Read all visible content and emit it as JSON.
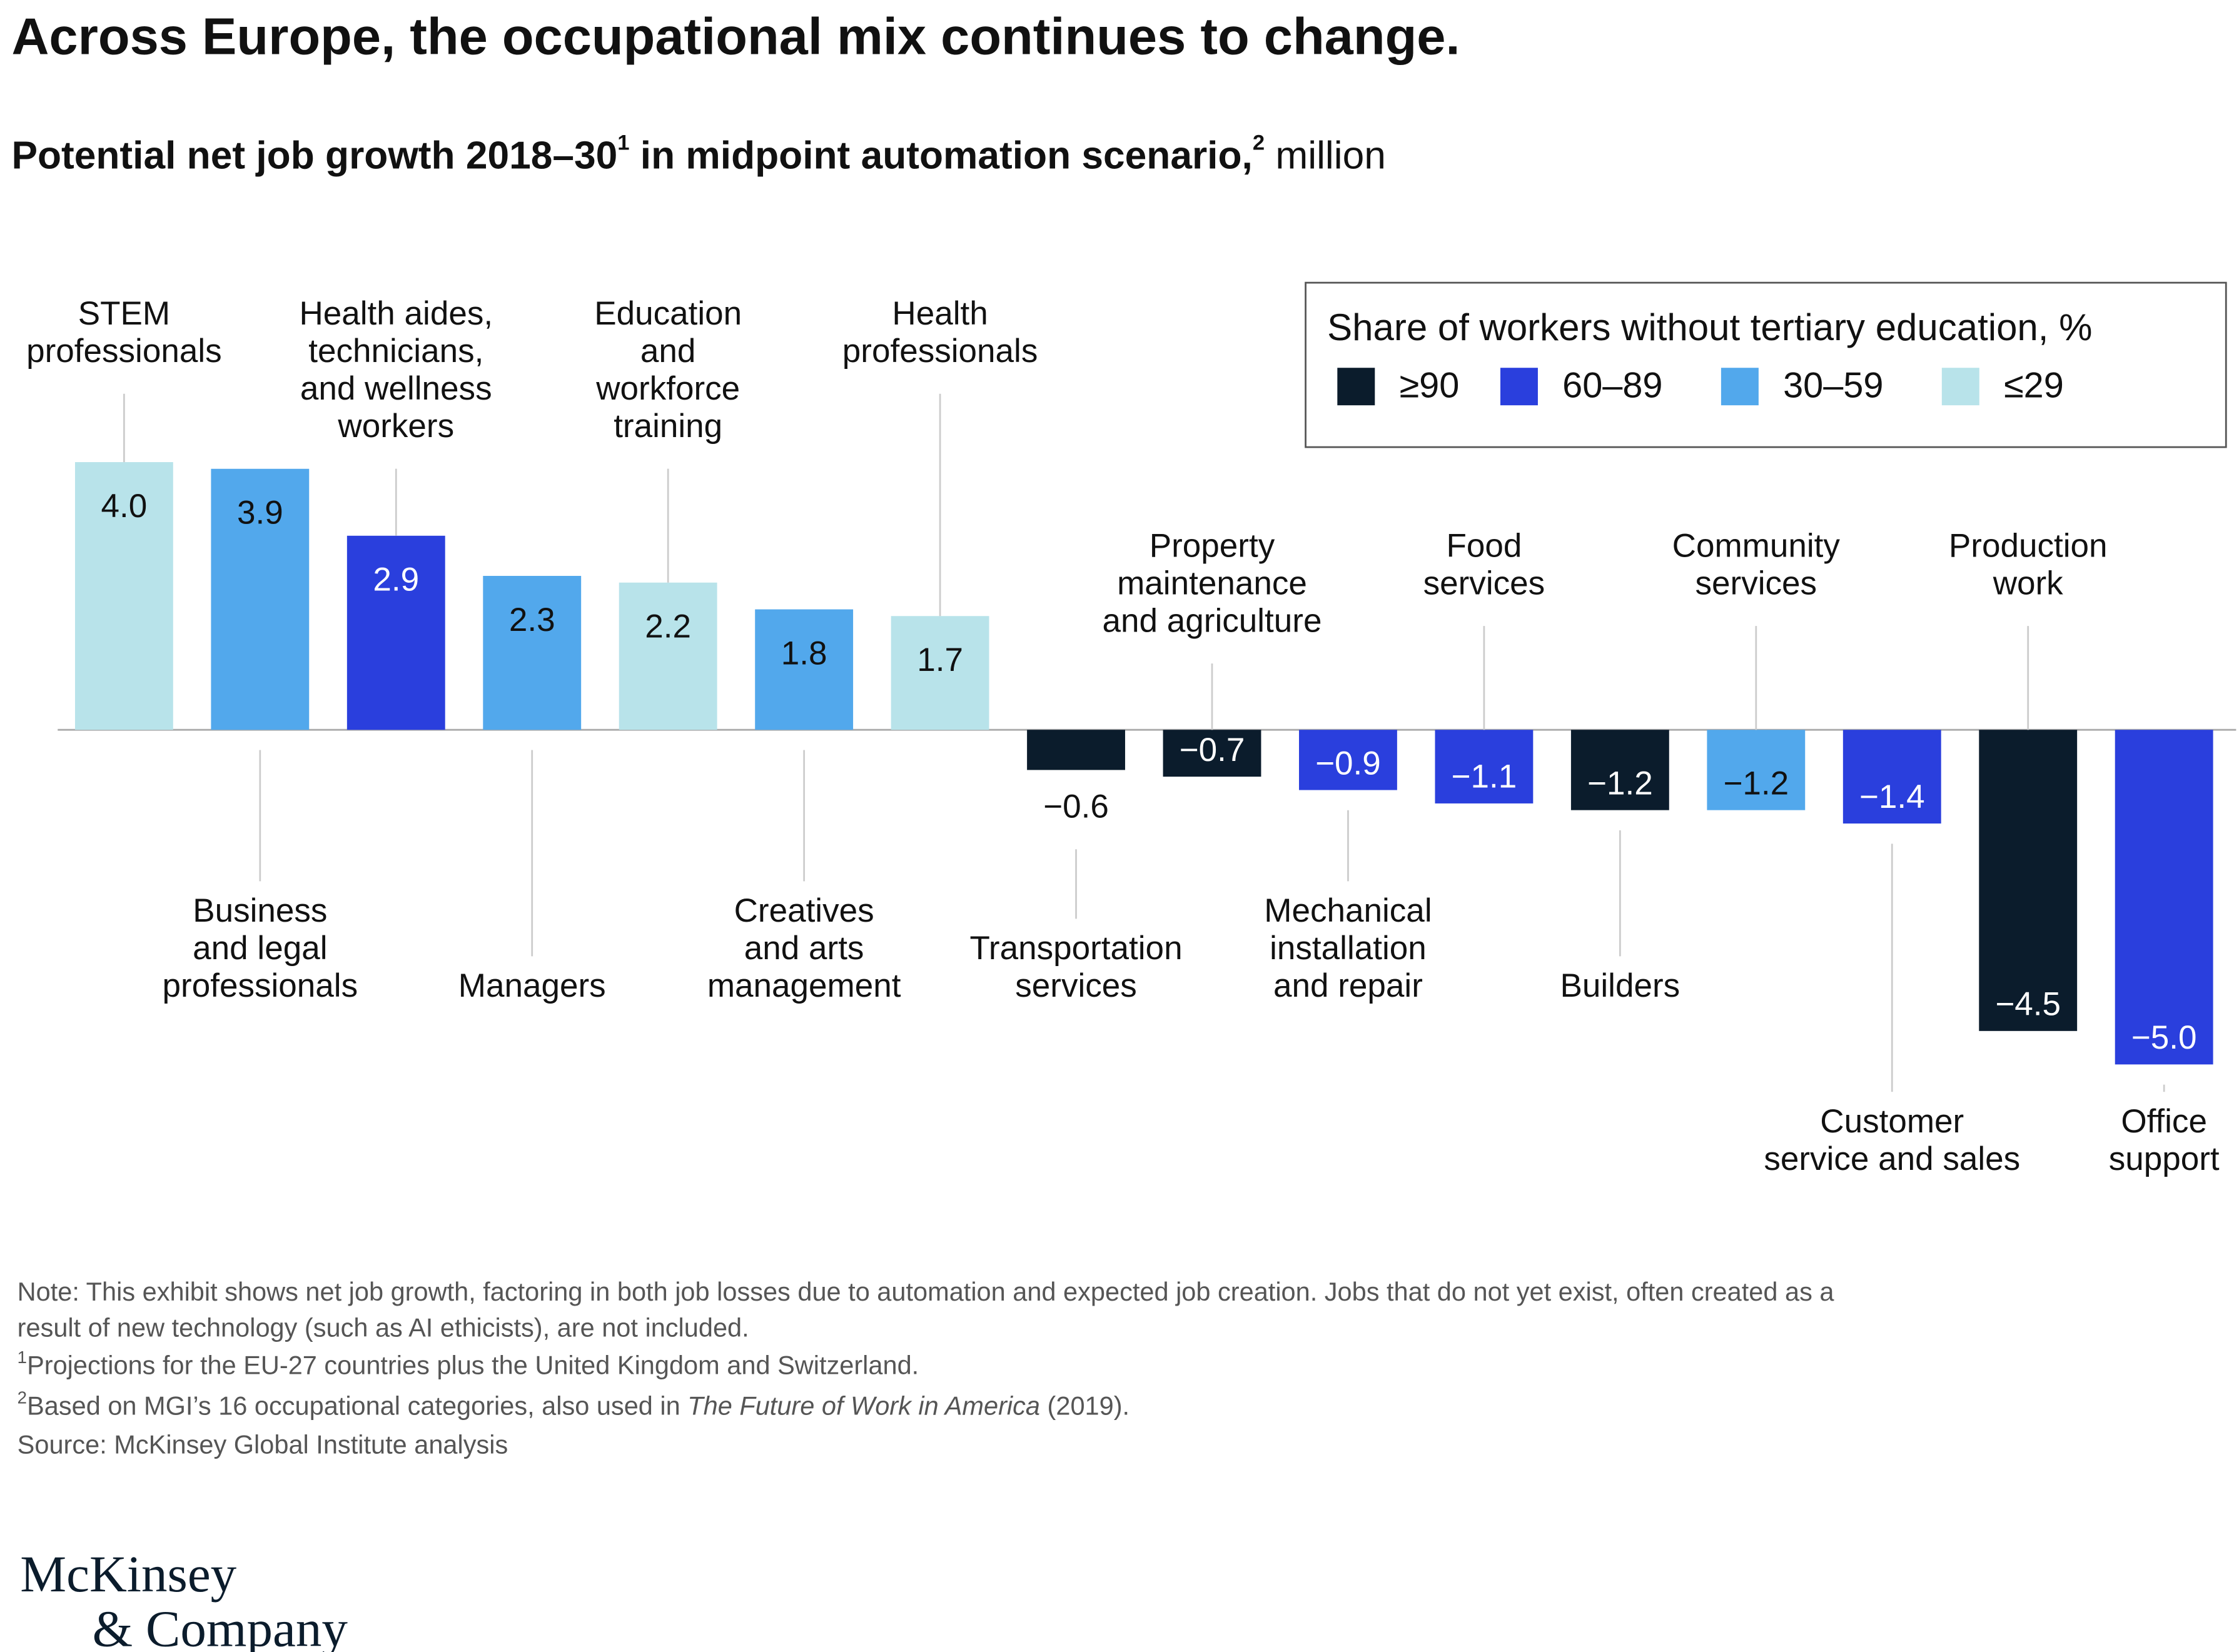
{
  "chart_data": {
    "type": "bar",
    "title": "Across Europe, the occupational mix continues to change.",
    "subtitle": {
      "text": "Potential net job growth 2018–30",
      "note1": "1",
      "text2": " in midpoint automation scenario,",
      "note2": "2",
      "unit": " million"
    },
    "categories": [
      "STEM\nprofessionals",
      "Business\nand legal\nprofessionals",
      "Health aides,\ntechnicians,\nand wellness\nworkers",
      "Managers",
      "Education\nand\nworkforce\ntraining",
      "Creatives\nand arts\nmanagement",
      "Health\nprofessionals",
      "Transportation\nservices",
      "Property\nmaintenance\nand agriculture",
      "Mechanical\ninstallation\nand repair",
      "Food\nservices",
      "Builders",
      "Community\nservices",
      "Customer\nservice and sales",
      "Production\nwork",
      "Office\nsupport"
    ],
    "values": [
      4.0,
      3.9,
      2.9,
      2.3,
      2.2,
      1.8,
      1.7,
      -0.6,
      -0.7,
      -0.9,
      -1.1,
      -1.2,
      -1.2,
      -1.4,
      -4.5,
      -5.0
    ],
    "value_labels": [
      "4.0",
      "3.9",
      "2.9",
      "2.3",
      "2.2",
      "1.8",
      "1.7",
      "−0.6",
      "−0.7",
      "−0.9",
      "−1.1",
      "−1.2",
      "−1.2",
      "−1.4",
      "−4.5",
      "−5.0"
    ],
    "colors": [
      "#b8e3ea",
      "#52a8ec",
      "#2a3fdd",
      "#52a8ec",
      "#b8e3ea",
      "#52a8ec",
      "#b8e3ea",
      "#0b1c2c",
      "#0b1c2c",
      "#2a3fdd",
      "#2a3fdd",
      "#0b1c2c",
      "#52a8ec",
      "#2a3fdd",
      "#0b1c2c",
      "#2a3fdd"
    ],
    "legend": {
      "title": "Share of workers without tertiary education,",
      "unit": " %",
      "items": [
        {
          "name": "≥90",
          "color": "#0b1c2c"
        },
        {
          "name": "60–89",
          "color": "#2a3fdd"
        },
        {
          "name": "30–59",
          "color": "#52a8ec"
        },
        {
          "name": "≤29",
          "color": "#b8e3ea"
        }
      ]
    },
    "note": [
      "Note: This exhibit shows net job growth, factoring in both job losses due to automation and expected job creation. Jobs that do not yet exist, often created as a",
      "result of new technology (such as AI ethicists), are not included."
    ],
    "footnotes": [
      {
        "mark": "1",
        "text": "Projections for the EU-27 countries plus the United Kingdom and Switzerland."
      },
      {
        "mark": "2",
        "text": "Based on MGI’s 16 occupational categories, also used in ",
        "italic": "The Future of Work in America",
        "after": " (2019)."
      }
    ],
    "source": "Source: McKinsey Global Institute analysis",
    "logo": [
      "McKinsey",
      "& Company"
    ]
  }
}
